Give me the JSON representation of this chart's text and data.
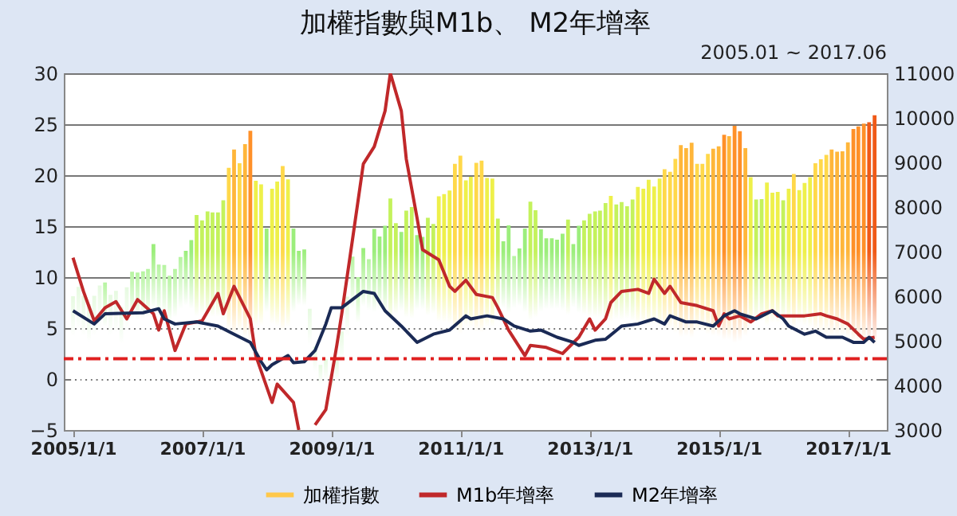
{
  "chart_data": {
    "type": "bar",
    "title": "加權指數與M1b、 M2年增率",
    "subtitle": "2005.01 ~ 2017.06",
    "x": [
      "2005-01",
      "2005-02",
      "2005-03",
      "2005-04",
      "2005-05",
      "2005-06",
      "2005-07",
      "2005-08",
      "2005-09",
      "2005-10",
      "2005-11",
      "2005-12",
      "2006-01",
      "2006-02",
      "2006-03",
      "2006-04",
      "2006-05",
      "2006-06",
      "2006-07",
      "2006-08",
      "2006-09",
      "2006-10",
      "2006-11",
      "2006-12",
      "2007-01",
      "2007-02",
      "2007-03",
      "2007-04",
      "2007-05",
      "2007-06",
      "2007-07",
      "2007-08",
      "2007-09",
      "2007-10",
      "2007-11",
      "2007-12",
      "2008-01",
      "2008-02",
      "2008-03",
      "2008-04",
      "2008-05",
      "2008-06",
      "2008-07",
      "2008-08",
      "2008-09",
      "2008-10",
      "2008-11",
      "2008-12",
      "2009-01",
      "2009-02",
      "2009-03",
      "2009-04",
      "2009-05",
      "2009-06",
      "2009-07",
      "2009-08",
      "2009-09",
      "2009-10",
      "2009-11",
      "2009-12",
      "2010-01",
      "2010-02",
      "2010-03",
      "2010-04",
      "2010-05",
      "2010-06",
      "2010-07",
      "2010-08",
      "2010-09",
      "2010-10",
      "2010-11",
      "2010-12",
      "2011-01",
      "2011-02",
      "2011-03",
      "2011-04",
      "2011-05",
      "2011-06",
      "2011-07",
      "2011-08",
      "2011-09",
      "2011-10",
      "2011-11",
      "2011-12",
      "2012-01",
      "2012-02",
      "2012-03",
      "2012-04",
      "2012-05",
      "2012-06",
      "2012-07",
      "2012-08",
      "2012-09",
      "2012-10",
      "2012-11",
      "2012-12",
      "2013-01",
      "2013-02",
      "2013-03",
      "2013-04",
      "2013-05",
      "2013-06",
      "2013-07",
      "2013-08",
      "2013-09",
      "2013-10",
      "2013-11",
      "2013-12",
      "2014-01",
      "2014-02",
      "2014-03",
      "2014-04",
      "2014-05",
      "2014-06",
      "2014-07",
      "2014-08",
      "2014-09",
      "2014-10",
      "2014-11",
      "2014-12",
      "2015-01",
      "2015-02",
      "2015-03",
      "2015-04",
      "2015-05",
      "2015-06",
      "2015-07",
      "2015-08",
      "2015-09",
      "2015-10",
      "2015-11",
      "2015-12",
      "2016-01",
      "2016-02",
      "2016-03",
      "2016-04",
      "2016-05",
      "2016-06",
      "2016-07",
      "2016-08",
      "2016-09",
      "2016-10",
      "2016-11",
      "2016-12",
      "2017-01",
      "2017-02",
      "2017-03",
      "2017-04",
      "2017-05",
      "2017-06"
    ],
    "series": [
      {
        "name": "加權指數",
        "axis": "y2",
        "color": "#ffc84a",
        "values": [
          6000,
          6210,
          6010,
          5820,
          6010,
          6240,
          6310,
          6030,
          6120,
          5760,
          6200,
          6550,
          6530,
          6560,
          6610,
          7170,
          6710,
          6700,
          6460,
          6610,
          6880,
          7020,
          7260,
          7820,
          7700,
          7900,
          7880,
          7880,
          8150,
          8880,
          9290,
          8980,
          9410,
          9710,
          8590,
          8510,
          7520,
          8410,
          8570,
          8920,
          8620,
          7520,
          7020,
          7050,
          5720,
          4870,
          4460,
          4590,
          4250,
          4560,
          5210,
          5990,
          6890,
          6430,
          7080,
          6830,
          7510,
          7340,
          7580,
          8190,
          7640,
          7440,
          7920,
          8000,
          7370,
          7330,
          7760,
          7620,
          8240,
          8290,
          8370,
          8970,
          9150,
          8600,
          8680,
          8990,
          9040,
          8650,
          8640,
          7740,
          7230,
          7590,
          6900,
          7070,
          7520,
          8120,
          7930,
          7500,
          7300,
          7300,
          7270,
          7400,
          7720,
          7170,
          7580,
          7700,
          7850,
          7900,
          7920,
          8090,
          8250,
          8060,
          8110,
          8020,
          8170,
          8450,
          8410,
          8610,
          8460,
          8640,
          8850,
          8790,
          9080,
          9390,
          9320,
          9440,
          8970,
          8970,
          9190,
          9310,
          9360,
          9620,
          9590,
          9820,
          9700,
          9320,
          8670,
          8170,
          8180,
          8550,
          8320,
          8340,
          8150,
          8410,
          8740,
          8380,
          8540,
          8670,
          8980,
          9070,
          9170,
          9290,
          9240,
          9250,
          9450,
          9750,
          9810,
          9870,
          9900,
          10060
        ],
        "colors": [
          "#e6fae0",
          "#e6fae0",
          "#e6fae0",
          "#e6fae0",
          "#e6fae0",
          "#e6fae0",
          "#b6f4a0",
          "#e6fae0",
          "#e6fae0",
          "#e6fae0",
          "#e6fae0",
          "#b6f4a0",
          "#b6f4a0",
          "#b6f4a0",
          "#b6f4a0",
          "#9cee7c",
          "#b6f4a0",
          "#b6f4a0",
          "#b6f4a0",
          "#b6f4a0",
          "#b6f4a0",
          "#9cee7c",
          "#9cee7c",
          "#c4f25c",
          "#c4f25c",
          "#c4f25c",
          "#c4f25c",
          "#c4f25c",
          "#c4f25c",
          "#ffd84a",
          "#ffb63a",
          "#ffd84a",
          "#ffb63a",
          "#ff9028",
          "#eef04a",
          "#eef04a",
          "#9cee7c",
          "#eef04a",
          "#eef04a",
          "#ffd84a",
          "#eef04a",
          "#9cee7c",
          "#9cee7c",
          "#9cee7c",
          "#e6fae0",
          "#e6fae0",
          "#e6fae0",
          "#e6fae0",
          "#e6fae0",
          "#e6fae0",
          "#e6fae0",
          "#e6fae0",
          "#b6f4a0",
          "#b6f4a0",
          "#9cee7c",
          "#b6f4a0",
          "#9cee7c",
          "#9cee7c",
          "#9cee7c",
          "#c4f25c",
          "#c4f25c",
          "#9cee7c",
          "#c4f25c",
          "#c4f25c",
          "#9cee7c",
          "#9cee7c",
          "#c4f25c",
          "#c4f25c",
          "#eef04a",
          "#eef04a",
          "#eef04a",
          "#ffd84a",
          "#ffd84a",
          "#eef04a",
          "#eef04a",
          "#ffd84a",
          "#ffd84a",
          "#eef04a",
          "#eef04a",
          "#c4f25c",
          "#9cee7c",
          "#9cee7c",
          "#b6f4a0",
          "#9cee7c",
          "#9cee7c",
          "#c4f25c",
          "#c4f25c",
          "#9cee7c",
          "#9cee7c",
          "#9cee7c",
          "#9cee7c",
          "#9cee7c",
          "#c4f25c",
          "#9cee7c",
          "#9cee7c",
          "#c4f25c",
          "#c4f25c",
          "#c4f25c",
          "#c4f25c",
          "#c4f25c",
          "#eef04a",
          "#c4f25c",
          "#c4f25c",
          "#c4f25c",
          "#c4f25c",
          "#eef04a",
          "#eef04a",
          "#eef04a",
          "#eef04a",
          "#eef04a",
          "#ffd84a",
          "#ffd84a",
          "#ffd84a",
          "#ffb63a",
          "#ffb63a",
          "#ffb63a",
          "#ffd84a",
          "#ffd84a",
          "#ffd84a",
          "#ffb63a",
          "#ffb63a",
          "#ff9028",
          "#ffb63a",
          "#ff9028",
          "#ff9028",
          "#ffb63a",
          "#eef04a",
          "#c4f25c",
          "#c4f25c",
          "#eef04a",
          "#eef04a",
          "#eef04a",
          "#c4f25c",
          "#eef04a",
          "#ffd84a",
          "#eef04a",
          "#eef04a",
          "#eef04a",
          "#ffd84a",
          "#ffd84a",
          "#ffd84a",
          "#ffb63a",
          "#ffb63a",
          "#ffb63a",
          "#ffb63a",
          "#ff9028",
          "#ff9028",
          "#ff9028",
          "#f05a18",
          "#f05a18"
        ]
      },
      {
        "name": "M1b年增率",
        "type": "line",
        "color": "#c0282a",
        "x": [
          "2005-01",
          "2005-03",
          "2005-05",
          "2005-07",
          "2005-09",
          "2005-11",
          "2006-01",
          "2006-04",
          "2006-05",
          "2006-06",
          "2006-08",
          "2006-10",
          "2007-01",
          "2007-04",
          "2007-05",
          "2007-07",
          "2007-10",
          "2007-11",
          "2008-02",
          "2008-03",
          "2008-06",
          "2008-07",
          "2008-08",
          "2008-09",
          "2008-10",
          "2008-12",
          "2009-02",
          "2009-03",
          "2009-05",
          "2009-07",
          "2009-09",
          "2009-11",
          "2009-12",
          "2010-02",
          "2010-03",
          "2010-05",
          "2010-06",
          "2010-09",
          "2010-11",
          "2010-12",
          "2011-02",
          "2011-04",
          "2011-07",
          "2011-08",
          "2011-10",
          "2012-01",
          "2012-02",
          "2012-05",
          "2012-08",
          "2012-11",
          "2013-01",
          "2013-02",
          "2013-04",
          "2013-05",
          "2013-07",
          "2013-10",
          "2013-12",
          "2014-01",
          "2014-03",
          "2014-04",
          "2014-06",
          "2014-09",
          "2014-12",
          "2015-01",
          "2015-02",
          "2015-03",
          "2015-05",
          "2015-07",
          "2015-09",
          "2015-11",
          "2015-12",
          "2016-05",
          "2016-08",
          "2016-09",
          "2016-11",
          "2017-01",
          "2017-03",
          "2017-04",
          "2017-06"
        ],
        "values": [
          11.9,
          8.6,
          5.7,
          7.0,
          7.6,
          5.9,
          7.8,
          6.4,
          4.8,
          6.7,
          2.8,
          5.4,
          5.7,
          8.4,
          6.4,
          9.1,
          5.9,
          2.3,
          -2.3,
          -0.5,
          -2.3,
          -5,
          null,
          null,
          -4.5,
          -3.0,
          3.3,
          6.4,
          13.7,
          21.1,
          22.8,
          26.3,
          30,
          26.3,
          21.6,
          15.8,
          12.7,
          11.7,
          9.1,
          8.6,
          9.7,
          8.3,
          8.0,
          7.0,
          4.8,
          2.3,
          3.3,
          3.1,
          2.5,
          4.1,
          5.9,
          4.8,
          5.9,
          7.5,
          8.6,
          8.8,
          8.4,
          9.8,
          8.4,
          9.1,
          7.5,
          7.2,
          6.7,
          5.2,
          6.4,
          5.9,
          6.2,
          5.6,
          6.4,
          6.7,
          6.2,
          6.2,
          6.4,
          6.2,
          5.9,
          5.4,
          4.4,
          3.9,
          4.1
        ]
      },
      {
        "name": "M2年增率",
        "type": "line",
        "color": "#1a2a55",
        "x": [
          "2005-01",
          "2005-05",
          "2005-07",
          "2006-02",
          "2006-05",
          "2006-06",
          "2006-08",
          "2006-12",
          "2007-04",
          "2007-07",
          "2007-10",
          "2007-12",
          "2008-01",
          "2008-02",
          "2008-05",
          "2008-06",
          "2008-08",
          "2008-10",
          "2008-12",
          "2009-01",
          "2009-03",
          "2009-05",
          "2009-07",
          "2009-09",
          "2009-11",
          "2010-02",
          "2010-05",
          "2010-08",
          "2010-11",
          "2011-02",
          "2011-03",
          "2011-06",
          "2011-09",
          "2011-11",
          "2012-02",
          "2012-04",
          "2012-07",
          "2012-10",
          "2012-11",
          "2013-02",
          "2013-04",
          "2013-07",
          "2013-10",
          "2014-01",
          "2014-03",
          "2014-04",
          "2014-07",
          "2014-09",
          "2014-12",
          "2015-02",
          "2015-04",
          "2015-05",
          "2015-08",
          "2015-11",
          "2016-01",
          "2016-02",
          "2016-05",
          "2016-07",
          "2016-09",
          "2016-12",
          "2017-02",
          "2017-04",
          "2017-05",
          "2017-06"
        ],
        "values": [
          6.7,
          5.4,
          6.4,
          6.5,
          6.9,
          5.9,
          5.4,
          5.6,
          5.2,
          4.4,
          3.6,
          1.7,
          0.9,
          1.4,
          2.3,
          1.6,
          1.7,
          2.8,
          5.4,
          7.0,
          7.0,
          7.8,
          8.6,
          8.4,
          6.7,
          5.2,
          3.6,
          4.4,
          4.8,
          6.2,
          5.9,
          6.2,
          5.9,
          5.2,
          4.7,
          4.8,
          4.1,
          3.6,
          3.3,
          3.8,
          3.9,
          5.2,
          5.4,
          5.9,
          5.4,
          6.2,
          5.6,
          5.6,
          5.2,
          6.2,
          6.7,
          6.4,
          5.9,
          6.7,
          5.9,
          5.2,
          4.4,
          4.7,
          4.1,
          4.1,
          3.6,
          3.6,
          4.1,
          3.6
        ]
      }
    ],
    "xlim": [
      "2004-12-25",
      "2017-06-25"
    ],
    "xticks": [
      {
        "value": "2005-01-01",
        "label": "2005/1/1"
      },
      {
        "value": "2007-01-01",
        "label": "2007/1/1"
      },
      {
        "value": "2009-01-01",
        "label": "2009/1/1"
      },
      {
        "value": "2011-01-01",
        "label": "2011/1/1"
      },
      {
        "value": "2013-01-01",
        "label": "2013/1/1"
      },
      {
        "value": "2015-01-01",
        "label": "2015/1/1"
      },
      {
        "value": "2017-01-01",
        "label": "2017/1/1"
      }
    ],
    "ylim": [
      -5,
      30
    ],
    "yticks": [
      -5,
      0,
      5,
      10,
      15,
      20,
      25,
      30
    ],
    "y2lim": [
      3000,
      11000
    ],
    "y2ticks": [
      3000,
      4000,
      5000,
      6000,
      7000,
      8000,
      9000,
      10000,
      11000
    ],
    "ref_lines": [
      {
        "axis": "y",
        "value": 2,
        "color": "#e02020",
        "line_style": "dashed"
      }
    ],
    "grid": "y",
    "legend": "bottom"
  }
}
